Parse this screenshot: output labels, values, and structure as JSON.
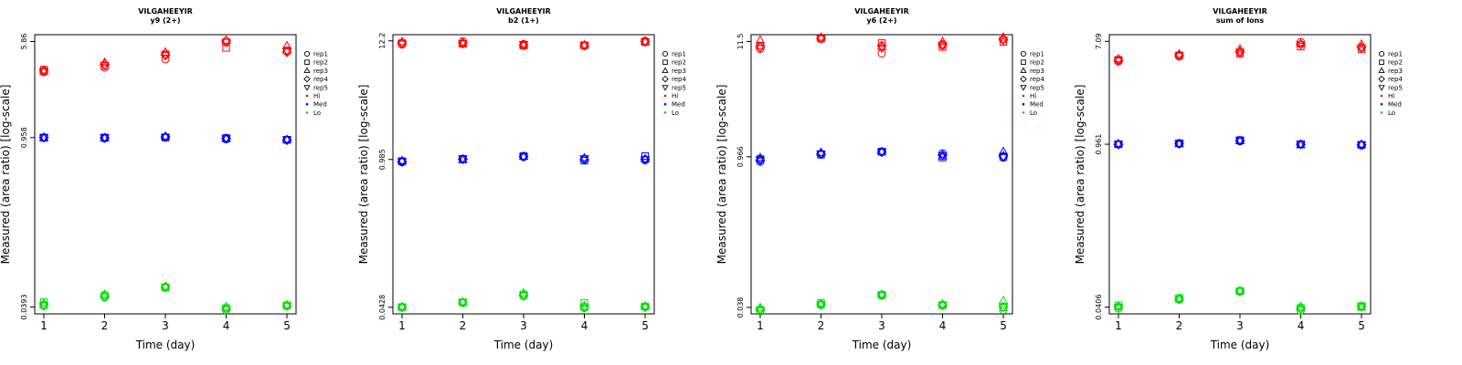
{
  "colors": {
    "Hi": "#ff0000",
    "Med": "#0000ff",
    "Lo": "#00dd00",
    "axis": "#000000"
  },
  "legend": {
    "placement": "right",
    "entries": [
      {
        "label": "rep1",
        "symbol": "circle"
      },
      {
        "label": "rep2",
        "symbol": "square"
      },
      {
        "label": "rep3",
        "symbol": "triangle-up"
      },
      {
        "label": "rep4",
        "symbol": "diamond"
      },
      {
        "label": "rep5",
        "symbol": "triangle-down"
      },
      {
        "label": "Hi",
        "symbol": "dot",
        "color": "#ff0000"
      },
      {
        "label": "Med",
        "symbol": "dot",
        "color": "#0000ff"
      },
      {
        "label": "Lo",
        "symbol": "dot",
        "color": "#00dd00"
      }
    ]
  },
  "chart_data": [
    {
      "type": "scatter",
      "title": "VILGAHEEYIR",
      "subtitle": "y9 (2+)",
      "xlabel": "Time (day)",
      "ylabel": "Measured (area ratio) [log-scale]",
      "yscale": "log",
      "xlim": [
        0.85,
        5.15
      ],
      "ylim": [
        0.0345,
        6.67
      ],
      "xticks": [
        1,
        2,
        3,
        4,
        5
      ],
      "xtick_labels": [
        "1",
        "2",
        "3",
        "4",
        "5"
      ],
      "yticks": [
        0.0393,
        0.958,
        5.86
      ],
      "ytick_labels": [
        "0.0393",
        "0.958",
        "5.86"
      ],
      "series": [
        {
          "name": "Hi",
          "color": "#ff0000",
          "reps": [
            [
              3.3,
              3.45,
              3.35,
              3.4,
              3.35
            ],
            [
              3.6,
              3.7,
              3.95,
              3.8,
              3.75
            ],
            [
              4.2,
              4.6,
              4.8,
              4.55,
              4.5
            ],
            [
              5.75,
              5.2,
              6.0,
              5.95,
              5.8
            ],
            [
              4.9,
              4.95,
              5.4,
              4.8,
              4.9
            ]
          ]
        },
        {
          "name": "Med",
          "color": "#0000ff",
          "reps": [
            [
              0.955,
              0.96,
              0.95,
              0.96,
              0.958
            ],
            [
              0.945,
              0.96,
              0.95,
              0.955,
              0.955
            ],
            [
              0.97,
              0.96,
              0.98,
              0.97,
              0.965
            ],
            [
              0.93,
              0.95,
              0.94,
              0.945,
              0.94
            ],
            [
              0.915,
              0.92,
              0.925,
              0.915,
              0.92
            ]
          ]
        },
        {
          "name": "Lo",
          "color": "#00dd00",
          "reps": [
            [
              0.04,
              0.043,
              0.041,
              0.0415,
              0.0405
            ],
            [
              0.047,
              0.049,
              0.05,
              0.048,
              0.0475
            ],
            [
              0.0575,
              0.0565,
              0.058,
              0.057,
              0.057
            ],
            [
              0.037,
              0.0385,
              0.0395,
              0.038,
              0.0378
            ],
            [
              0.04,
              0.0405,
              0.041,
              0.0402,
              0.04
            ]
          ]
        }
      ]
    },
    {
      "type": "scatter",
      "title": "VILGAHEEYIR",
      "subtitle": "b2 (1+)",
      "xlabel": "Time (day)",
      "ylabel": "Measured (area ratio) [log-scale]",
      "yscale": "log",
      "xlim": [
        0.85,
        5.15
      ],
      "ylim": [
        0.0372,
        13.9
      ],
      "xticks": [
        1,
        2,
        3,
        4,
        5
      ],
      "xtick_labels": [
        "1",
        "2",
        "3",
        "4",
        "5"
      ],
      "yticks": [
        0.0428,
        0.985,
        12.2
      ],
      "ytick_labels": [
        "0.0428",
        "0.985",
        "12.2"
      ],
      "series": [
        {
          "name": "Hi",
          "color": "#ff0000",
          "reps": [
            [
              11.3,
              11.6,
              12.0,
              11.7,
              11.4
            ],
            [
              12.1,
              11.4,
              11.6,
              11.7,
              11.5
            ],
            [
              11.4,
              11.0,
              11.2,
              11.1,
              11.3
            ],
            [
              11.0,
              11.1,
              11.2,
              11.0,
              11.1
            ],
            [
              12.2,
              11.9,
              12.1,
              12.0,
              11.9
            ]
          ]
        },
        {
          "name": "Med",
          "color": "#0000ff",
          "reps": [
            [
              0.93,
              0.95,
              0.96,
              0.94,
              0.94
            ],
            [
              1.0,
              0.99,
              0.98,
              0.99,
              1.0
            ],
            [
              1.04,
              1.06,
              1.05,
              1.05,
              1.04
            ],
            [
              0.99,
              0.96,
              1.02,
              0.98,
              1.0
            ],
            [
              0.97,
              1.06,
              1.0,
              0.99,
              0.98
            ]
          ]
        },
        {
          "name": "Lo",
          "color": "#00dd00",
          "reps": [
            [
              0.0425,
              0.043,
              0.0435,
              0.0428,
              0.043
            ],
            [
              0.047,
              0.0475,
              0.048,
              0.0472,
              0.0474
            ],
            [
              0.054,
              0.056,
              0.058,
              0.0555,
              0.055
            ],
            [
              0.042,
              0.047,
              0.043,
              0.044,
              0.0425
            ],
            [
              0.043,
              0.0435,
              0.044,
              0.0432,
              0.043
            ]
          ]
        }
      ]
    },
    {
      "type": "scatter",
      "title": "VILGAHEEYIR",
      "subtitle": "y6 (2+)",
      "xlabel": "Time (day)",
      "ylabel": "Measured (area ratio) [log-scale]",
      "yscale": "log",
      "xlim": [
        0.85,
        5.15
      ],
      "ylim": [
        0.0331,
        13.3
      ],
      "xticks": [
        1,
        2,
        3,
        4,
        5
      ],
      "xtick_labels": [
        "1",
        "2",
        "3",
        "4",
        "5"
      ],
      "yticks": [
        0.038,
        0.966,
        11.5
      ],
      "ytick_labels": [
        "0.038",
        "0.966",
        "11.5"
      ],
      "series": [
        {
          "name": "Hi",
          "color": "#ff0000",
          "reps": [
            [
              9.8,
              10.5,
              11.8,
              10.2,
              10.0
            ],
            [
              12.4,
              12.2,
              12.6,
              12.3,
              12.2
            ],
            [
              8.9,
              11.1,
              10.3,
              10.5,
              10.0
            ],
            [
              10.6,
              10.2,
              11.5,
              10.8,
              10.6
            ],
            [
              12.0,
              11.4,
              12.6,
              12.0,
              11.8
            ]
          ]
        },
        {
          "name": "Med",
          "color": "#0000ff",
          "reps": [
            [
              0.87,
              0.92,
              0.95,
              0.9,
              0.9
            ],
            [
              1.03,
              1.01,
              1.06,
              1.03,
              1.03
            ],
            [
              1.07,
              1.08,
              1.08,
              1.07,
              1.07
            ],
            [
              1.04,
              0.95,
              0.98,
              1.0,
              0.99
            ],
            [
              0.95,
              0.97,
              1.08,
              0.98,
              0.96
            ]
          ]
        },
        {
          "name": "Lo",
          "color": "#00dd00",
          "reps": [
            [
              0.035,
              0.036,
              0.038,
              0.0365,
              0.036
            ],
            [
              0.04,
              0.042,
              0.041,
              0.041,
              0.0405
            ],
            [
              0.049,
              0.05,
              0.0505,
              0.05,
              0.0495
            ],
            [
              0.0395,
              0.04,
              0.041,
              0.04,
              0.0398
            ],
            [
              0.036,
              0.038,
              0.044,
              0.0385,
              0.038
            ]
          ]
        }
      ]
    },
    {
      "type": "scatter",
      "title": "VILGAHEEYIR",
      "subtitle": "sum of Ions",
      "xlabel": "Time (day)",
      "ylabel": "Measured (area ratio) [log-scale]",
      "yscale": "log",
      "xlim": [
        0.85,
        5.15
      ],
      "ylim": [
        0.0356,
        8.07
      ],
      "xticks": [
        1,
        2,
        3,
        4,
        5
      ],
      "xtick_labels": [
        "1",
        "2",
        "3",
        "4",
        "5"
      ],
      "yticks": [
        0.0406,
        0.961,
        7.09
      ],
      "ytick_labels": [
        "0.0406",
        "0.961",
        "7.09"
      ],
      "series": [
        {
          "name": "Hi",
          "color": "#ff0000",
          "reps": [
            [
              4.8,
              4.95,
              5.05,
              4.9,
              4.9
            ],
            [
              5.3,
              5.4,
              5.55,
              5.4,
              5.35
            ],
            [
              5.7,
              5.55,
              6.1,
              5.8,
              5.75
            ],
            [
              7.0,
              6.4,
              6.8,
              6.7,
              6.65
            ],
            [
              6.3,
              6.1,
              6.7,
              6.3,
              6.25
            ]
          ]
        },
        {
          "name": "Med",
          "color": "#0000ff",
          "reps": [
            [
              0.96,
              0.96,
              0.97,
              0.96,
              0.96
            ],
            [
              0.97,
              0.98,
              0.97,
              0.97,
              0.97
            ],
            [
              1.02,
              1.04,
              1.03,
              1.03,
              1.03
            ],
            [
              0.96,
              0.96,
              0.95,
              0.96,
              0.96
            ],
            [
              0.94,
              0.95,
              0.96,
              0.95,
              0.95
            ]
          ]
        },
        {
          "name": "Lo",
          "color": "#00dd00",
          "reps": [
            [
              0.0395,
              0.042,
              0.041,
              0.041,
              0.0405
            ],
            [
              0.047,
              0.0485,
              0.0475,
              0.0478,
              0.0476
            ],
            [
              0.055,
              0.0555,
              0.056,
              0.0555,
              0.0552
            ],
            [
              0.038,
              0.04,
              0.041,
              0.0395,
              0.039
            ],
            [
              0.041,
              0.0415,
              0.0405,
              0.041,
              0.041
            ]
          ]
        }
      ]
    }
  ]
}
